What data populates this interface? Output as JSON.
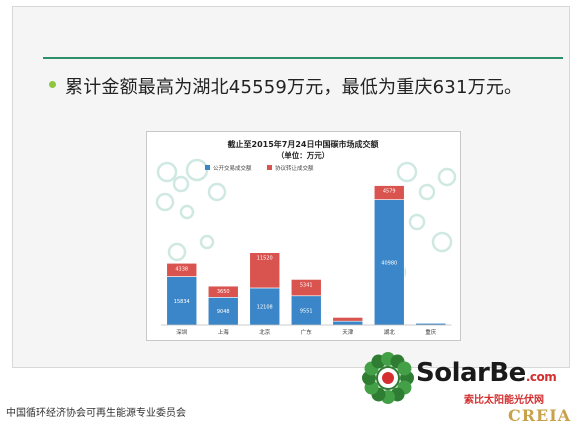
{
  "slide": {
    "bullet_text": "累计金额最高为湖北45559万元，最低为重庆631万元。"
  },
  "chart_data": {
    "type": "bar",
    "stacked": true,
    "title": "截止至2015年7月24日中国碳市场成交额",
    "subtitle": "（单位：万元）",
    "categories": [
      "深圳",
      "上海",
      "北京",
      "广东",
      "天津",
      "湖北",
      "重庆"
    ],
    "series": [
      {
        "name": "公开交易成交额",
        "color": "#3b86c8",
        "values": [
          15834,
          9048,
          12108,
          9551,
          1249,
          40980,
          574
        ]
      },
      {
        "name": "协议转让成交额",
        "color": "#d9534f",
        "values": [
          4338,
          3650,
          11520,
          5341,
          1229,
          4579,
          57
        ]
      }
    ],
    "data_labels": {
      "series_0": [
        "15834",
        "9048",
        "12108",
        "9551",
        "",
        "40980",
        ""
      ],
      "series_1": [
        "4338",
        "3650",
        "11520",
        "5341",
        "",
        "4579",
        ""
      ]
    },
    "ylim": [
      0,
      50000
    ],
    "legend_position": "top-left",
    "grid": false
  },
  "footer": {
    "credit": "中国循环经济协会可再生能源专业委员会"
  },
  "logo": {
    "brand_main": "SolarBe",
    "brand_suffix": ".com",
    "tagline": "索比太阳能光伏网",
    "creia": "CREIA"
  },
  "colors": {
    "accent_rule": "#2f8f6a",
    "bullet": "#8dc63f",
    "series_blue": "#3b86c8",
    "series_red": "#d9534f",
    "logo_red": "#d32f2f"
  }
}
